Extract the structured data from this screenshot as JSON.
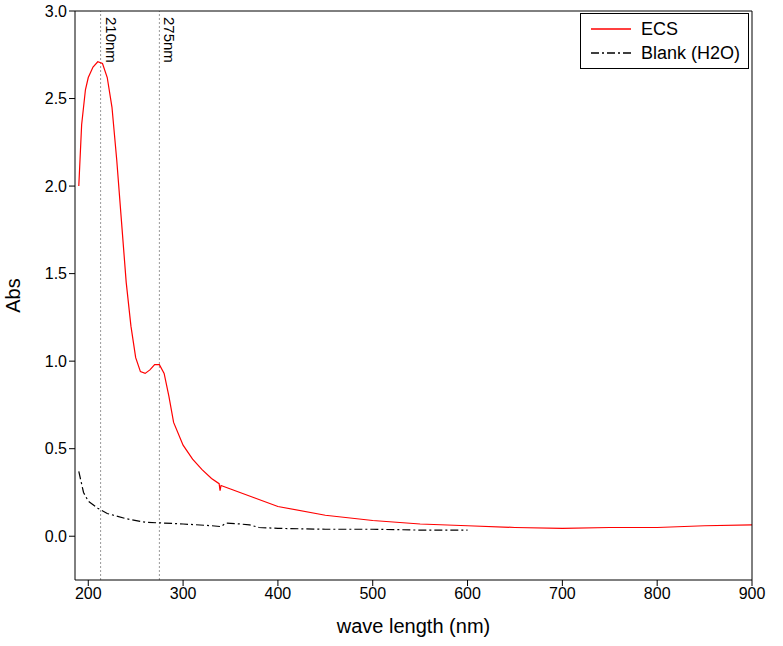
{
  "chart_data": {
    "type": "line",
    "x_label": "wave length (nm)",
    "y_label": "Abs",
    "xlim": [
      186,
      900
    ],
    "xticks": [
      200,
      300,
      400,
      500,
      600,
      700,
      800,
      900
    ],
    "ylim": [
      -0.25,
      3.0
    ],
    "yticks": [
      {
        "value": 0,
        "label": "0.0"
      },
      {
        "value": 0.5,
        "label": "0.5"
      },
      {
        "value": 1,
        "label": "1.0"
      },
      {
        "value": 1.5,
        "label": "1.5"
      },
      {
        "value": 2,
        "label": "2.0"
      },
      {
        "value": 2.5,
        "label": "2.5"
      },
      {
        "value": 3,
        "label": "3.0"
      }
    ],
    "grid": false,
    "legend": "upper right",
    "annotations": [
      {
        "x": 213,
        "text": "210nm"
      },
      {
        "x": 275,
        "text": "275nm"
      }
    ],
    "series": [
      {
        "name": "ECS",
        "color": "#ff0000",
        "line_style": "solid",
        "x": [
          190,
          193,
          197,
          200,
          205,
          210,
          215,
          220,
          225,
          230,
          235,
          240,
          245,
          250,
          255,
          260,
          265,
          270,
          275,
          280,
          285,
          290,
          300,
          310,
          320,
          330,
          338,
          339,
          340,
          350,
          375,
          400,
          450,
          500,
          550,
          600,
          650,
          700,
          750,
          800,
          850,
          900
        ],
        "values": [
          2.0,
          2.35,
          2.55,
          2.62,
          2.68,
          2.71,
          2.7,
          2.62,
          2.45,
          2.15,
          1.8,
          1.45,
          1.2,
          1.02,
          0.94,
          0.93,
          0.95,
          0.98,
          0.98,
          0.93,
          0.8,
          0.65,
          0.52,
          0.44,
          0.38,
          0.33,
          0.3,
          0.26,
          0.29,
          0.27,
          0.22,
          0.17,
          0.12,
          0.09,
          0.07,
          0.06,
          0.05,
          0.045,
          0.05,
          0.05,
          0.06,
          0.065
        ]
      },
      {
        "name": "Blank (H2O)",
        "color": "#000000",
        "line_style": "dashdot",
        "x": [
          190,
          195,
          200,
          210,
          220,
          240,
          260,
          280,
          300,
          330,
          340,
          345,
          360,
          370,
          380,
          400,
          450,
          500,
          550,
          600
        ],
        "values": [
          0.37,
          0.25,
          0.2,
          0.16,
          0.13,
          0.1,
          0.08,
          0.075,
          0.07,
          0.06,
          0.055,
          0.075,
          0.07,
          0.065,
          0.05,
          0.045,
          0.04,
          0.04,
          0.035,
          0.035
        ]
      }
    ]
  }
}
